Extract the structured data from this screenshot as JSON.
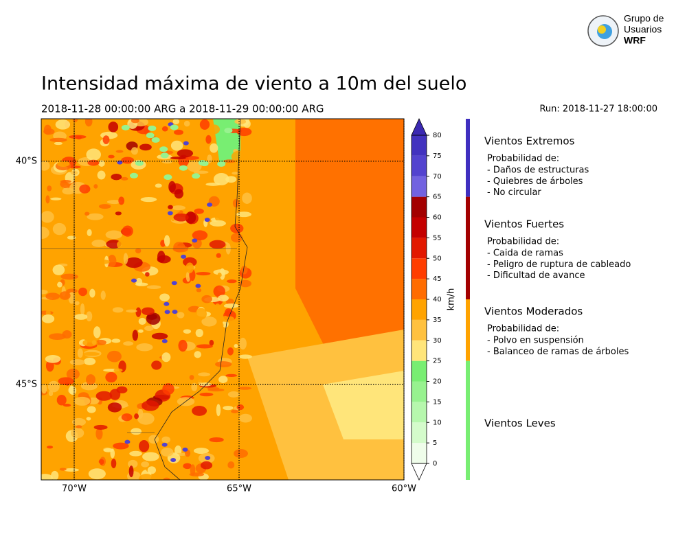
{
  "logo": {
    "line1": "Grupo de",
    "line2": "Usuarios",
    "line3": "WRF"
  },
  "title": "Intensidad máxima de viento a 10m del suelo",
  "subtitle": "2018-11-28 00:00:00 ARG  a  2018-11-29 00:00:00 ARG",
  "run": "Run: 2018-11-27 18:00:00",
  "map": {
    "xlim": [
      -71,
      -60
    ],
    "ylim": [
      -47.14,
      -39.05
    ],
    "xticks": [
      {
        "value": -70,
        "label": "70°W"
      },
      {
        "value": -65,
        "label": "65°W"
      },
      {
        "value": -60,
        "label": "60°W"
      }
    ],
    "yticks": [
      {
        "value": -40,
        "label": "40°S"
      },
      {
        "value": -45,
        "label": "45°S"
      }
    ]
  },
  "colorbar": {
    "label": "km/h",
    "ticks": [
      0,
      5,
      10,
      15,
      20,
      25,
      30,
      35,
      40,
      45,
      50,
      55,
      60,
      65,
      70,
      75,
      80
    ],
    "colors": [
      "#effdea",
      "#d4fbcb",
      "#b6f7ad",
      "#97f28f",
      "#78ee72",
      "#ffe57a",
      "#ffc13f",
      "#ffa300",
      "#ff6c00",
      "#ff3d00",
      "#e21800",
      "#c40000",
      "#a30000",
      "#7262e0",
      "#5343cf",
      "#4232bf"
    ],
    "under_color": "#ffffff",
    "over_color": "#3b29b2"
  },
  "legend": [
    {
      "name": "Vientos Extremos",
      "color": "#3f2fbf",
      "text_color": "#3f2fbf",
      "range": [
        65,
        80
      ],
      "heading": "Probabilidad de:",
      "items": [
        "- Daños de estructuras",
        "- Quiebres de árboles",
        "- No circular"
      ]
    },
    {
      "name": "Vientos Fuertes",
      "color": "#a30000",
      "text_color": "#a30000",
      "range": [
        40,
        65
      ],
      "heading": "Probabilidad de:",
      "items": [
        "- Caida de ramas",
        "- Peligro de ruptura de cableado",
        "- Dificultad de avance"
      ]
    },
    {
      "name": "Vientos Moderados",
      "color": "#ffa300",
      "text_color": "#a86a00",
      "range": [
        25,
        40
      ],
      "heading": "Probabilidad de:",
      "items": [
        "- Polvo en suspensión",
        "- Balanceo de ramas de árboles"
      ]
    },
    {
      "name": "Vientos Leves",
      "color": "#78ee72",
      "text_color": "#3a8a3a",
      "range": [
        0,
        25
      ]
    }
  ]
}
